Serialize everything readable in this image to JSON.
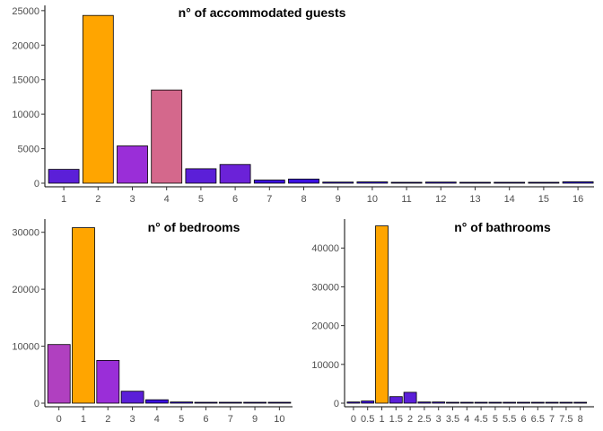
{
  "chart_data": [
    {
      "type": "bar",
      "title": "n° of accommodated guests",
      "categories": [
        "1",
        "2",
        "3",
        "4",
        "5",
        "6",
        "7",
        "8",
        "9",
        "10",
        "11",
        "12",
        "13",
        "14",
        "15",
        "16"
      ],
      "values": [
        2000,
        24300,
        5400,
        13500,
        2100,
        2700,
        450,
        600,
        150,
        180,
        100,
        150,
        50,
        50,
        50,
        200
      ],
      "colors": [
        "#5b1fd8",
        "#ffa500",
        "#9a2ed8",
        "#d4688c",
        "#5b1fd8",
        "#6b22d8",
        "#3b10e0",
        "#3b10e0",
        "#2a00f0",
        "#2a00f0",
        "#2a00f0",
        "#2a00f0",
        "#2a00f0",
        "#2a00f0",
        "#2a00f0",
        "#2a00f0"
      ],
      "yticks": [
        0,
        5000,
        10000,
        15000,
        20000,
        25000
      ],
      "ylim": [
        0,
        25500
      ],
      "xlabel": "",
      "ylabel": "",
      "grid": false
    },
    {
      "type": "bar",
      "title": "n° of bedrooms",
      "categories": [
        "0",
        "1",
        "2",
        "3",
        "4",
        "5",
        "6",
        "7",
        "9",
        "10"
      ],
      "values": [
        10300,
        30800,
        7500,
        2100,
        600,
        200,
        50,
        30,
        20,
        20
      ],
      "colors": [
        "#b040c0",
        "#ffa500",
        "#9a2ed8",
        "#5b1fd8",
        "#3b10e0",
        "#2a00f0",
        "#2a00f0",
        "#2a00f0",
        "#2a00f0",
        "#2a00f0"
      ],
      "yticks": [
        0,
        10000,
        20000,
        30000
      ],
      "ylim": [
        0,
        32000
      ],
      "xlabel": "",
      "ylabel": "",
      "grid": false
    },
    {
      "type": "bar",
      "title": "n° of bathrooms",
      "categories": [
        "0",
        "0.5",
        "1",
        "1.5",
        "2",
        "2.5",
        "3",
        "3.5",
        "4",
        "4.5",
        "5",
        "5.5",
        "6",
        "6.5",
        "7",
        "7.5",
        "8"
      ],
      "values": [
        300,
        550,
        45700,
        1700,
        2800,
        300,
        300,
        200,
        100,
        20,
        20,
        20,
        20,
        20,
        20,
        20,
        20
      ],
      "colors": [
        "#3b10e0",
        "#3b10e0",
        "#ffa500",
        "#5b1fd8",
        "#5b1fd8",
        "#3b10e0",
        "#3b10e0",
        "#3b10e0",
        "#2a00f0",
        "#2a00f0",
        "#2a00f0",
        "#2a00f0",
        "#2a00f0",
        "#2a00f0",
        "#2a00f0",
        "#2a00f0",
        "#2a00f0"
      ],
      "yticks": [
        0,
        10000,
        20000,
        30000,
        40000
      ],
      "ylim": [
        0,
        47000
      ],
      "xlabel": "",
      "ylabel": "",
      "grid": false
    }
  ]
}
